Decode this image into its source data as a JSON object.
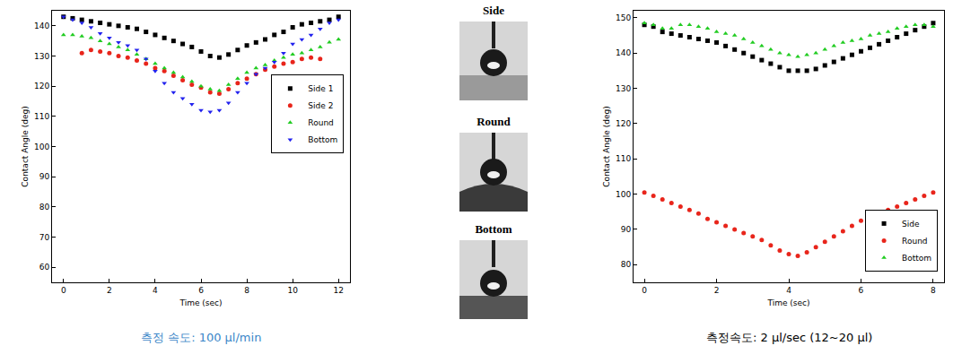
{
  "chart_data": [
    {
      "type": "scatter",
      "x_label": "Time (sec)",
      "y_label": "Contact Angle (deg)",
      "caption": "측정 속도: 100 μl/min",
      "x": [
        0,
        0.4,
        0.8,
        1.2,
        1.6,
        2.0,
        2.4,
        2.8,
        3.2,
        3.6,
        4.0,
        4.4,
        4.8,
        5.2,
        5.6,
        6.0,
        6.4,
        6.8,
        7.2,
        7.6,
        8.0,
        8.4,
        8.8,
        9.2,
        9.6,
        10.0,
        10.4,
        10.8,
        11.2,
        11.6,
        12.0
      ],
      "series": [
        {
          "name": "Side 1",
          "color": "#000000",
          "marker": "square",
          "values": [
            143,
            142.5,
            142,
            141.5,
            141,
            140.5,
            140,
            139.5,
            139,
            138,
            137,
            136,
            135,
            134,
            133,
            131.5,
            130,
            129.5,
            130.5,
            132,
            133.5,
            134.5,
            135.5,
            137,
            138,
            139.5,
            140.5,
            141,
            141.5,
            142,
            143
          ]
        },
        {
          "name": "Side 2",
          "color": "#e8251b",
          "marker": "circle",
          "values": [
            null,
            null,
            131,
            132,
            131.5,
            131,
            130,
            129.5,
            128.5,
            127.5,
            126,
            125,
            123.5,
            122,
            120.5,
            119.5,
            118,
            117.5,
            119,
            121,
            122.5,
            124,
            125.5,
            126.5,
            127.5,
            128,
            129,
            129.5,
            129,
            null,
            null
          ]
        },
        {
          "name": "Round",
          "color": "#22cc22",
          "marker": "triangle-up",
          "values": [
            137,
            137,
            136.5,
            136,
            135,
            134,
            133,
            132,
            130.5,
            129,
            127.5,
            126,
            124.5,
            123,
            121.5,
            120,
            119,
            118.5,
            120.5,
            122.5,
            124.5,
            126,
            127,
            128.5,
            129.5,
            130.5,
            131,
            132,
            133,
            134.5,
            135.5
          ]
        },
        {
          "name": "Bottom",
          "color": "#2222ee",
          "marker": "triangle-down",
          "values": [
            143,
            142,
            141,
            139.5,
            137.5,
            136,
            134.5,
            133.5,
            132,
            129,
            125,
            121,
            118,
            116,
            114,
            112,
            111.5,
            112,
            114.5,
            118,
            121,
            124,
            126,
            128,
            131,
            134,
            135.5,
            137,
            139,
            141,
            142
          ]
        }
      ],
      "xlim": [
        -0.5,
        12.5
      ],
      "xticks": [
        0,
        2,
        4,
        6,
        8,
        10,
        12
      ],
      "ylim": [
        55,
        145
      ],
      "yticks": [
        60,
        70,
        80,
        90,
        100,
        110,
        120,
        130,
        140
      ],
      "grid": false,
      "legend": "center right"
    },
    {
      "type": "scatter",
      "x_label": "Time (sec)",
      "y_label": "Contact Angle (deg)",
      "caption": "측정속도: 2 μl/sec (12~20 μl)",
      "x": [
        0,
        0.25,
        0.5,
        0.75,
        1,
        1.25,
        1.5,
        1.75,
        2,
        2.25,
        2.5,
        2.75,
        3,
        3.25,
        3.5,
        3.75,
        4,
        4.25,
        4.5,
        4.75,
        5,
        5.25,
        5.5,
        5.75,
        6,
        6.25,
        6.5,
        6.75,
        7,
        7.25,
        7.5,
        7.75,
        8
      ],
      "series": [
        {
          "name": "Side",
          "color": "#000000",
          "marker": "square",
          "values": [
            148,
            147.5,
            146,
            145.5,
            145,
            144.5,
            144,
            143.5,
            143,
            142,
            141,
            140,
            139,
            138,
            137,
            136,
            135,
            135,
            135,
            135.5,
            136.5,
            137.5,
            138.5,
            139.5,
            140.5,
            141.5,
            142.5,
            143.5,
            144.5,
            145.5,
            146.5,
            147.5,
            148.5
          ]
        },
        {
          "name": "Round",
          "color": "#e8251b",
          "marker": "circle",
          "values": [
            100.5,
            99.5,
            98.5,
            97.5,
            96.5,
            95.5,
            94.5,
            93,
            92,
            91,
            90,
            89,
            88,
            87,
            85.5,
            84,
            83,
            82.5,
            83.5,
            85,
            86.5,
            88,
            89.5,
            91,
            92.5,
            93.5,
            94.5,
            95.5,
            96.5,
            97.5,
            98.5,
            99.5,
            100.5
          ]
        },
        {
          "name": "Bottom",
          "color": "#22cc22",
          "marker": "triangle-up",
          "values": [
            148.5,
            148,
            147,
            147,
            148,
            148,
            147.5,
            147,
            146,
            145.5,
            145,
            144,
            143,
            142,
            141,
            140,
            139.5,
            139,
            139.5,
            140,
            141,
            142,
            143,
            143.5,
            144,
            145,
            145.5,
            146,
            147,
            147.5,
            148,
            148,
            147.5
          ]
        }
      ],
      "xlim": [
        -0.3,
        8.3
      ],
      "xticks": [
        0,
        2,
        4,
        6,
        8
      ],
      "ylim": [
        75,
        152
      ],
      "yticks": [
        80,
        90,
        100,
        110,
        120,
        130,
        140,
        150
      ],
      "grid": false,
      "legend": "lower right"
    }
  ],
  "photos": [
    "Side",
    "Round",
    "Bottom"
  ]
}
